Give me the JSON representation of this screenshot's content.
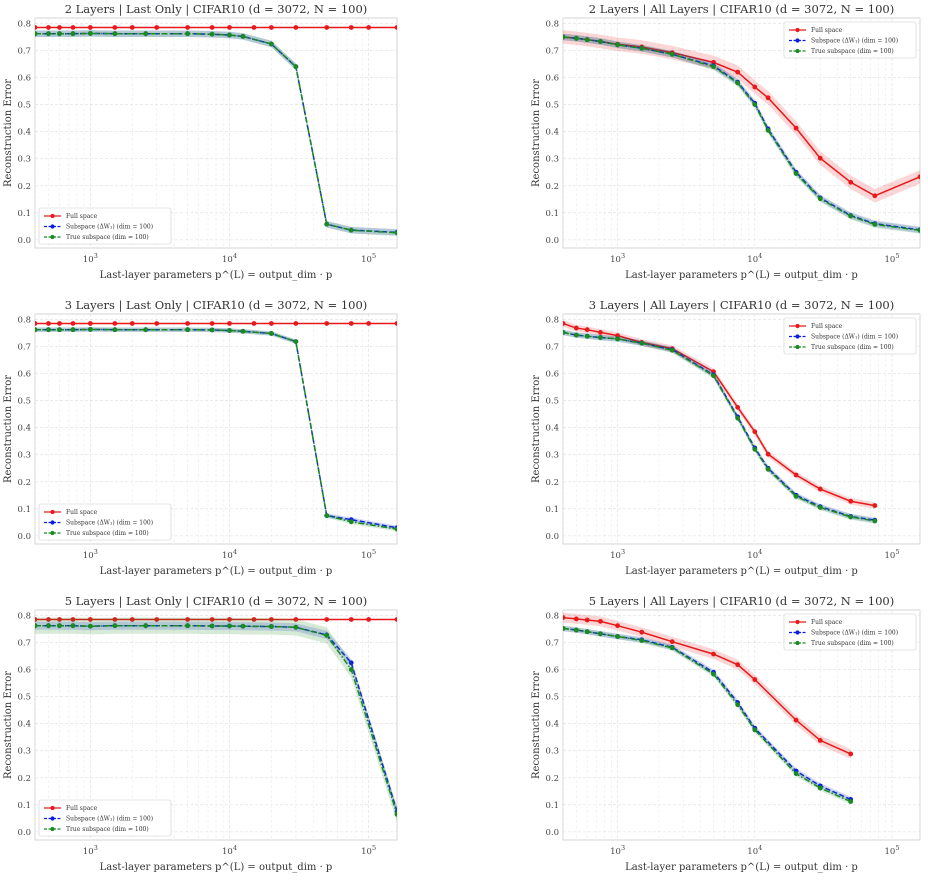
{
  "chart_data": [
    {
      "type": "line",
      "title": "2 Layers | Last Only | CIFAR10 (d = 3072, N = 100)",
      "xlabel": "Last-layer parameters  p^(L) = output_dim · p",
      "ylabel": "Reconstruction Error",
      "xscale": "log",
      "xlim": [
        400,
        160000
      ],
      "ylim": [
        -0.03,
        0.82
      ],
      "yticks": [
        "0.0",
        "0.1",
        "0.2",
        "0.3",
        "0.4",
        "0.5",
        "0.6",
        "0.7",
        "0.8"
      ],
      "xticks": [
        "10^3",
        "10^4",
        "10^5"
      ],
      "grid": true,
      "legend_position": "lower-left",
      "series": [
        {
          "name": "Full space",
          "color": "#e8191a",
          "style": "solid",
          "x": [
            400,
            500,
            600,
            750,
            1000,
            1500,
            2000,
            3000,
            5000,
            7500,
            10000,
            15000,
            20000,
            30000,
            50000,
            75000,
            100000,
            160000
          ],
          "values": [
            0.785,
            0.785,
            0.785,
            0.785,
            0.785,
            0.785,
            0.785,
            0.785,
            0.785,
            0.785,
            0.785,
            0.785,
            0.785,
            0.785,
            0.785,
            0.785,
            0.785,
            0.785
          ],
          "band": 0.002
        },
        {
          "name": "Subspace (ΔW₁) (dim = 100)",
          "color": "#0a1fe6",
          "style": "dashed",
          "x": [
            400,
            500,
            600,
            750,
            1000,
            1500,
            2500,
            5000,
            7500,
            10000,
            12500,
            20000,
            30000,
            50000,
            75000,
            160000
          ],
          "values": [
            0.762,
            0.762,
            0.762,
            0.762,
            0.763,
            0.762,
            0.762,
            0.762,
            0.76,
            0.757,
            0.752,
            0.724,
            0.64,
            0.058,
            0.036,
            0.028
          ],
          "band": 0.012
        },
        {
          "name": "True subspace (dim = 100)",
          "color": "#1a8a22",
          "style": "dashdot",
          "x": [
            400,
            500,
            600,
            750,
            1000,
            1500,
            2500,
            5000,
            7500,
            10000,
            12500,
            20000,
            30000,
            50000,
            75000,
            160000
          ],
          "values": [
            0.762,
            0.762,
            0.762,
            0.762,
            0.763,
            0.762,
            0.762,
            0.762,
            0.76,
            0.757,
            0.752,
            0.724,
            0.64,
            0.058,
            0.036,
            0.026
          ],
          "band": 0.012
        }
      ]
    },
    {
      "type": "line",
      "title": "2 Layers | All Layers | CIFAR10 (d = 3072, N = 100)",
      "xlabel": "Last-layer parameters  p^(L) = output_dim · p",
      "ylabel": "Reconstruction Error",
      "xscale": "log",
      "xlim": [
        400,
        160000
      ],
      "ylim": [
        -0.03,
        0.82
      ],
      "yticks": [
        "0.0",
        "0.1",
        "0.2",
        "0.3",
        "0.4",
        "0.5",
        "0.6",
        "0.7",
        "0.8"
      ],
      "xticks": [
        "10^3",
        "10^4",
        "10^5"
      ],
      "grid": true,
      "legend_position": "upper-right",
      "series": [
        {
          "name": "Full space",
          "color": "#e8191a",
          "style": "solid",
          "x": [
            400,
            500,
            600,
            750,
            1000,
            1500,
            2500,
            5000,
            7500,
            10000,
            12500,
            20000,
            30000,
            50000,
            75000,
            160000
          ],
          "values": [
            0.75,
            0.745,
            0.74,
            0.733,
            0.723,
            0.713,
            0.692,
            0.656,
            0.62,
            0.565,
            0.525,
            0.413,
            0.302,
            0.213,
            0.163,
            0.233
          ],
          "band": 0.025
        },
        {
          "name": "Subspace (ΔW₁) (dim = 100)",
          "color": "#0a1fe6",
          "style": "dashed",
          "x": [
            400,
            500,
            600,
            750,
            1000,
            1500,
            2500,
            5000,
            7500,
            10000,
            12500,
            20000,
            30000,
            50000,
            75000,
            160000
          ],
          "values": [
            0.75,
            0.745,
            0.74,
            0.733,
            0.721,
            0.708,
            0.686,
            0.643,
            0.583,
            0.505,
            0.41,
            0.25,
            0.155,
            0.09,
            0.06,
            0.037
          ],
          "band": 0.012
        },
        {
          "name": "True subspace (dim = 100)",
          "color": "#1a8a22",
          "style": "dashdot",
          "x": [
            400,
            500,
            600,
            750,
            1000,
            1500,
            2500,
            5000,
            7500,
            10000,
            12500,
            20000,
            30000,
            50000,
            75000,
            160000
          ],
          "values": [
            0.75,
            0.745,
            0.74,
            0.733,
            0.721,
            0.708,
            0.686,
            0.64,
            0.58,
            0.5,
            0.405,
            0.245,
            0.152,
            0.088,
            0.057,
            0.035
          ],
          "band": 0.012
        }
      ]
    },
    {
      "type": "line",
      "title": "3 Layers | Last Only | CIFAR10 (d = 3072, N = 100)",
      "xlabel": "Last-layer parameters  p^(L) = output_dim · p",
      "ylabel": "Reconstruction Error",
      "xscale": "log",
      "xlim": [
        400,
        160000
      ],
      "ylim": [
        -0.03,
        0.82
      ],
      "yticks": [
        "0.0",
        "0.1",
        "0.2",
        "0.3",
        "0.4",
        "0.5",
        "0.6",
        "0.7",
        "0.8"
      ],
      "xticks": [
        "10^3",
        "10^4",
        "10^5"
      ],
      "grid": true,
      "legend_position": "lower-left",
      "series": [
        {
          "name": "Full space",
          "color": "#e8191a",
          "style": "solid",
          "x": [
            400,
            500,
            600,
            750,
            1000,
            1500,
            2000,
            3000,
            5000,
            7500,
            10000,
            15000,
            20000,
            30000,
            50000,
            75000,
            100000,
            160000
          ],
          "values": [
            0.785,
            0.785,
            0.785,
            0.785,
            0.785,
            0.785,
            0.785,
            0.785,
            0.785,
            0.785,
            0.785,
            0.785,
            0.785,
            0.785,
            0.785,
            0.785,
            0.785,
            0.785
          ],
          "band": 0.002
        },
        {
          "name": "Subspace (ΔW₁) (dim = 100)",
          "color": "#0a1fe6",
          "style": "dashed",
          "x": [
            400,
            500,
            600,
            750,
            1000,
            1500,
            2500,
            5000,
            7500,
            10000,
            12500,
            20000,
            30000,
            50000,
            75000,
            160000
          ],
          "values": [
            0.762,
            0.762,
            0.762,
            0.762,
            0.763,
            0.762,
            0.762,
            0.762,
            0.761,
            0.759,
            0.756,
            0.748,
            0.718,
            0.075,
            0.06,
            0.03
          ],
          "band": 0.008
        },
        {
          "name": "True subspace (dim = 100)",
          "color": "#1a8a22",
          "style": "dashdot",
          "x": [
            400,
            500,
            600,
            750,
            1000,
            1500,
            2500,
            5000,
            7500,
            10000,
            12500,
            20000,
            30000,
            50000,
            75000,
            160000
          ],
          "values": [
            0.762,
            0.762,
            0.762,
            0.762,
            0.763,
            0.762,
            0.762,
            0.762,
            0.761,
            0.759,
            0.756,
            0.748,
            0.718,
            0.075,
            0.052,
            0.025
          ],
          "band": 0.008
        }
      ]
    },
    {
      "type": "line",
      "title": "3 Layers | All Layers | CIFAR10 (d = 3072, N = 100)",
      "xlabel": "Last-layer parameters  p^(L) = output_dim · p",
      "ylabel": "Reconstruction Error",
      "xscale": "log",
      "xlim": [
        400,
        160000
      ],
      "ylim": [
        -0.03,
        0.82
      ],
      "yticks": [
        "0.0",
        "0.1",
        "0.2",
        "0.3",
        "0.4",
        "0.5",
        "0.6",
        "0.7",
        "0.8"
      ],
      "xticks": [
        "10^3",
        "10^4",
        "10^5"
      ],
      "grid": true,
      "legend_position": "upper-right",
      "series": [
        {
          "name": "Full space",
          "color": "#e8191a",
          "style": "solid",
          "x": [
            400,
            500,
            600,
            750,
            1000,
            1500,
            2500,
            5000,
            7500,
            10000,
            12500,
            20000,
            30000,
            50000,
            75000
          ],
          "values": [
            0.785,
            0.768,
            0.762,
            0.752,
            0.74,
            0.715,
            0.692,
            0.607,
            0.475,
            0.385,
            0.302,
            0.225,
            0.173,
            0.128,
            0.112
          ],
          "band": 0.012
        },
        {
          "name": "Subspace (ΔW₁) (dim = 100)",
          "color": "#0a1fe6",
          "style": "dashed",
          "x": [
            400,
            500,
            600,
            750,
            1000,
            1500,
            2500,
            5000,
            7500,
            10000,
            12500,
            20000,
            30000,
            50000,
            75000
          ],
          "values": [
            0.752,
            0.742,
            0.738,
            0.733,
            0.728,
            0.712,
            0.688,
            0.595,
            0.44,
            0.325,
            0.25,
            0.15,
            0.108,
            0.072,
            0.058
          ],
          "band": 0.01
        },
        {
          "name": "True subspace (dim = 100)",
          "color": "#1a8a22",
          "style": "dashdot",
          "x": [
            400,
            500,
            600,
            750,
            1000,
            1500,
            2500,
            5000,
            7500,
            10000,
            12500,
            20000,
            30000,
            50000,
            75000
          ],
          "values": [
            0.752,
            0.742,
            0.738,
            0.733,
            0.728,
            0.712,
            0.686,
            0.592,
            0.435,
            0.32,
            0.246,
            0.146,
            0.105,
            0.07,
            0.055
          ],
          "band": 0.01
        }
      ]
    },
    {
      "type": "line",
      "title": "5 Layers | Last Only | CIFAR10 (d = 3072, N = 100)",
      "xlabel": "Last-layer parameters  p^(L) = output_dim · p",
      "ylabel": "Reconstruction Error",
      "xscale": "log",
      "xlim": [
        400,
        160000
      ],
      "ylim": [
        -0.03,
        0.82
      ],
      "yticks": [
        "0.0",
        "0.1",
        "0.2",
        "0.3",
        "0.4",
        "0.5",
        "0.6",
        "0.7",
        "0.8"
      ],
      "xticks": [
        "10^3",
        "10^4",
        "10^5"
      ],
      "grid": true,
      "legend_position": "lower-left",
      "series": [
        {
          "name": "Full space",
          "color": "#e8191a",
          "style": "solid",
          "x": [
            400,
            500,
            600,
            750,
            1000,
            1500,
            2000,
            3000,
            5000,
            7500,
            10000,
            15000,
            20000,
            30000,
            50000,
            75000,
            100000,
            160000
          ],
          "values": [
            0.785,
            0.785,
            0.785,
            0.785,
            0.785,
            0.785,
            0.785,
            0.785,
            0.785,
            0.785,
            0.785,
            0.785,
            0.785,
            0.785,
            0.785,
            0.785,
            0.785,
            0.785
          ],
          "band": 0.002
        },
        {
          "name": "Subspace (ΔW₁) (dim = 100)",
          "color": "#0a1fe6",
          "style": "dashed",
          "x": [
            400,
            500,
            600,
            750,
            1000,
            1500,
            2500,
            5000,
            7500,
            10000,
            12500,
            20000,
            30000,
            50000,
            75000,
            160000
          ],
          "values": [
            0.762,
            0.762,
            0.762,
            0.762,
            0.76,
            0.762,
            0.762,
            0.762,
            0.761,
            0.761,
            0.76,
            0.759,
            0.756,
            0.728,
            0.625,
            0.075
          ],
          "band": 0.015
        },
        {
          "name": "True subspace (dim = 100)",
          "color": "#1a8a22",
          "style": "dashdot",
          "x": [
            400,
            500,
            600,
            750,
            1000,
            1500,
            2500,
            5000,
            7500,
            10000,
            12500,
            20000,
            30000,
            50000,
            75000,
            160000
          ],
          "values": [
            0.762,
            0.762,
            0.762,
            0.762,
            0.76,
            0.762,
            0.762,
            0.762,
            0.761,
            0.761,
            0.76,
            0.759,
            0.756,
            0.726,
            0.6,
            0.065
          ],
          "band": 0.03
        }
      ]
    },
    {
      "type": "line",
      "title": "5 Layers | All Layers | CIFAR10 (d = 3072, N = 100)",
      "xlabel": "Last-layer parameters  p^(L) = output_dim · p",
      "ylabel": "Reconstruction Error",
      "xscale": "log",
      "xlim": [
        400,
        160000
      ],
      "ylim": [
        -0.03,
        0.82
      ],
      "yticks": [
        "0.0",
        "0.1",
        "0.2",
        "0.3",
        "0.4",
        "0.5",
        "0.6",
        "0.7",
        "0.8"
      ],
      "xticks": [
        "10^3",
        "10^4",
        "10^5"
      ],
      "grid": true,
      "legend_position": "upper-right",
      "series": [
        {
          "name": "Full space",
          "color": "#e8191a",
          "style": "solid",
          "x": [
            400,
            500,
            600,
            750,
            1000,
            1500,
            2500,
            5000,
            7500,
            10000,
            20000,
            30000,
            50000
          ],
          "values": [
            0.792,
            0.787,
            0.783,
            0.778,
            0.762,
            0.738,
            0.703,
            0.657,
            0.618,
            0.563,
            0.413,
            0.338,
            0.288
          ],
          "band": 0.018
        },
        {
          "name": "Subspace (ΔW₁) (dim = 100)",
          "color": "#0a1fe6",
          "style": "dashed",
          "x": [
            400,
            500,
            600,
            750,
            1000,
            1500,
            2500,
            5000,
            7500,
            10000,
            20000,
            30000,
            50000
          ],
          "values": [
            0.752,
            0.746,
            0.74,
            0.732,
            0.722,
            0.71,
            0.682,
            0.59,
            0.478,
            0.383,
            0.225,
            0.17,
            0.12
          ],
          "band": 0.01
        },
        {
          "name": "True subspace (dim = 100)",
          "color": "#1a8a22",
          "style": "dashdot",
          "x": [
            400,
            500,
            600,
            750,
            1000,
            1500,
            2500,
            5000,
            7500,
            10000,
            20000,
            30000,
            50000
          ],
          "values": [
            0.752,
            0.746,
            0.74,
            0.732,
            0.722,
            0.707,
            0.68,
            0.583,
            0.47,
            0.377,
            0.215,
            0.162,
            0.112
          ],
          "band": 0.01
        }
      ]
    }
  ]
}
